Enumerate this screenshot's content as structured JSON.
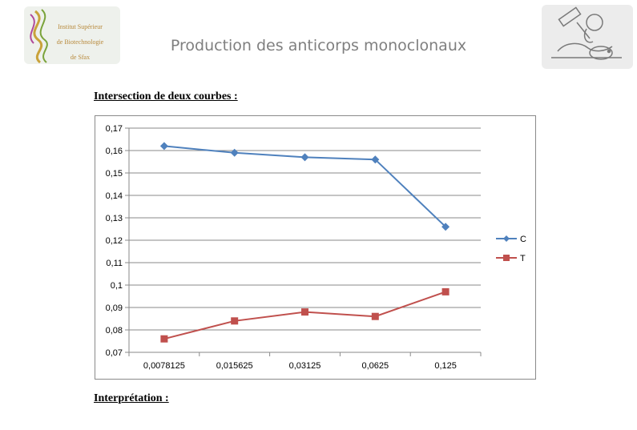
{
  "header": {
    "institute_lines": [
      "Institut Supérieur",
      "de Biotechnologie",
      "de Sfax"
    ],
    "title": "Production des anticorps monoclonaux"
  },
  "sections": {
    "intersection_heading": "Intersection de deux courbes :",
    "interpretation_heading": "Interprétation :"
  },
  "chart_data": {
    "type": "line",
    "categories": [
      "0,0078125",
      "0,015625",
      "0,03125",
      "0,0625",
      "0,125"
    ],
    "series": [
      {
        "name": "C",
        "values": [
          0.162,
          0.159,
          0.157,
          0.156,
          0.126
        ],
        "color": "#4f81bd",
        "marker": "diamond"
      },
      {
        "name": "T",
        "values": [
          0.076,
          0.084,
          0.088,
          0.086,
          0.097
        ],
        "color": "#c0504d",
        "marker": "square"
      }
    ],
    "ylim": [
      0.07,
      0.17
    ],
    "yticks": [
      0.07,
      0.08,
      0.09,
      0.1,
      0.11,
      0.12,
      0.13,
      0.14,
      0.15,
      0.16,
      0.17
    ],
    "ytick_labels": [
      "0,07",
      "0,08",
      "0,09",
      "0,1",
      "0,11",
      "0,12",
      "0,13",
      "0,14",
      "0,15",
      "0,16",
      "0,17"
    ],
    "grid": true,
    "legend_position": "right"
  }
}
